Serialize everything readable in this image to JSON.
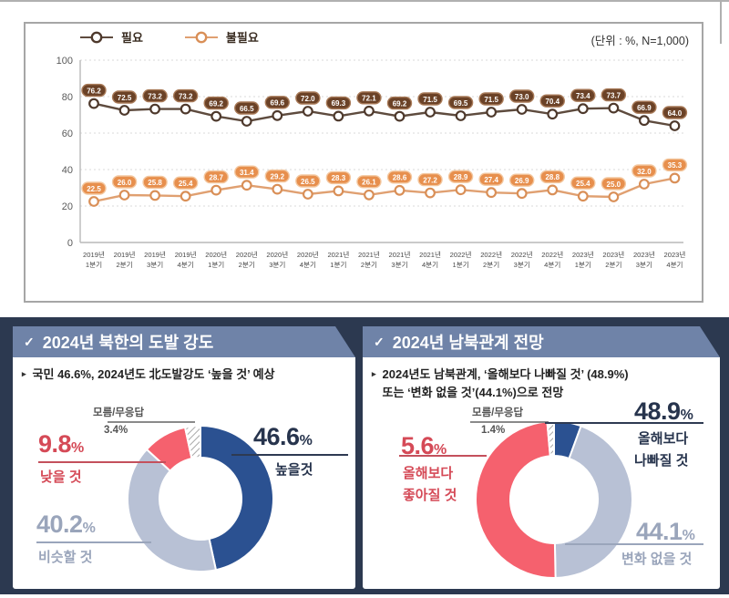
{
  "accent_colors": {
    "panel_background": "#2c3950",
    "panel_header": "#6f83a8",
    "donut_blue": "#2b5191",
    "donut_gray": "#b8c1d5",
    "donut_red": "#f5616e",
    "callout_dark": "#27344d",
    "callout_gray": "#9aa5bb",
    "callout_red": "#d54a57"
  },
  "chart_data": [
    {
      "type": "line",
      "title": "",
      "unit_note": "(단위 : %, N=1,000)",
      "x": [
        "2019년 1분기",
        "2019년 2분기",
        "2019년 3분기",
        "2019년 4분기",
        "2020년 1분기",
        "2020년 2분기",
        "2020년 3분기",
        "2020년 4분기",
        "2021년 1분기",
        "2021년 2분기",
        "2021년 3분기",
        "2021년 4분기",
        "2022년 1분기",
        "2022년 2분기",
        "2022년 3분기",
        "2022년 4분기",
        "2023년 1분기",
        "2023년 2분기",
        "2023년 3분기",
        "2023년 4분기"
      ],
      "series": [
        {
          "name": "필요",
          "values": [
            76.2,
            72.5,
            73.2,
            73.2,
            69.2,
            66.5,
            69.6,
            72.0,
            69.3,
            72.1,
            69.2,
            71.5,
            69.5,
            71.5,
            73.0,
            70.4,
            73.4,
            73.7,
            66.9,
            64.0
          ],
          "line_color": "#5e4b3e",
          "marker_color": "#4e392c",
          "badge_fill": "#6b4227",
          "badge_stroke": "#a87a58"
        },
        {
          "name": "불필요",
          "values": [
            22.5,
            26.0,
            25.8,
            25.4,
            28.7,
            31.4,
            29.2,
            26.5,
            28.3,
            26.1,
            28.6,
            27.2,
            28.9,
            27.4,
            26.9,
            28.8,
            25.4,
            25.0,
            32.0,
            35.3
          ],
          "line_color": "#e0a071",
          "marker_color": "#d98f57",
          "badge_fill": "#e78f4d",
          "badge_stroke": "#f3c79f"
        }
      ],
      "ylim": [
        0,
        100
      ],
      "y_ticks": [
        0,
        20,
        40,
        60,
        80,
        100
      ],
      "grid": "dotted horizontal",
      "legend_position": "top-left"
    },
    {
      "type": "pie",
      "donut": true,
      "title": "2024년 북한의 도발 강도",
      "labels": [
        "높을 것",
        "비슷할 것",
        "낮을 것",
        "모름/무응답"
      ],
      "values": [
        46.6,
        40.2,
        9.8,
        3.4
      ],
      "segments": [
        {
          "value": 46.6,
          "color": "blue"
        },
        {
          "value": 40.2,
          "color": "gray"
        },
        {
          "value": 9.8,
          "color": "red"
        },
        {
          "value": 3.4,
          "color": "hatch"
        }
      ]
    },
    {
      "type": "pie",
      "donut": true,
      "title": "2024년 남북관계 전망",
      "labels": [
        "올해보다 나빠질 것",
        "변화 없을 것",
        "올해보다 좋아질 것",
        "모름/무응답"
      ],
      "values": [
        48.9,
        44.1,
        5.6,
        1.4
      ],
      "segments": [
        {
          "value": 5.6,
          "color": "blue"
        },
        {
          "value": 44.1,
          "color": "gray"
        },
        {
          "value": 48.9,
          "color": "red"
        },
        {
          "value": 1.4,
          "color": "hatch"
        }
      ]
    }
  ],
  "panels": [
    {
      "check_icon": "✓",
      "bullet_marker": "▸",
      "title": "2024년 북한의 도발 강도",
      "bullet_lines": [
        "국민 46.6%, 2024년도 北도발강도 ‘높을 것’ 예상"
      ],
      "callouts": {
        "primary": {
          "value": "46.6",
          "unit": "%",
          "label": "높을것"
        },
        "secondary": {
          "value": "40.2",
          "unit": "%",
          "label": "비슷할 것"
        },
        "negative": {
          "value": "9.8",
          "unit": "%",
          "label": "낮을 것"
        },
        "unknown": {
          "name": "모름/무응답",
          "value": "3.4",
          "unit": "%"
        }
      }
    },
    {
      "check_icon": "✓",
      "bullet_marker": "▸",
      "title": "2024년 남북관계 전망",
      "bullet_lines": [
        "2024년도 남북관계, ‘올해보다 나빠질 것’ (48.9%)",
        "또는 ‘변화 없을 것’(44.1%)으로 전망"
      ],
      "callouts": {
        "primary": {
          "value": "48.9",
          "unit": "%",
          "label_lines": [
            "올해보다",
            "나빠질 것"
          ]
        },
        "secondary": {
          "value": "44.1",
          "unit": "%",
          "label": "변화 없을 것"
        },
        "negative": {
          "value": "5.6",
          "unit": "%",
          "label_lines": [
            "올해보다",
            "좋아질 것"
          ]
        },
        "unknown": {
          "name": "모름/무응답",
          "value": "1.4",
          "unit": "%"
        }
      }
    }
  ]
}
